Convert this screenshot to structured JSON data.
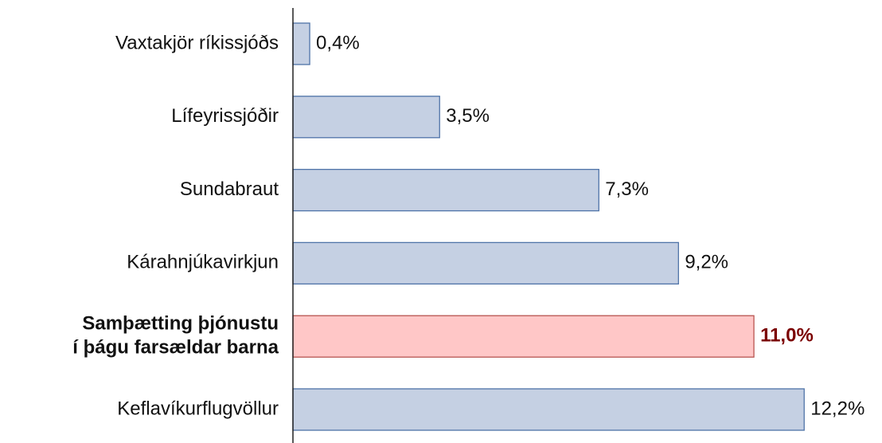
{
  "chart_data": {
    "type": "barh",
    "categories": [
      "Vaxtakjör ríkissjóðs",
      "Lífeyrissjóðir",
      "Sundabraut",
      "Kárahnjúkavirkjun",
      [
        "Samþætting þjónustu",
        "í þágu farsældar barna"
      ],
      "Keflavíkurflugvöllur"
    ],
    "values": [
      0.4,
      3.5,
      7.3,
      9.2,
      11.0,
      12.2
    ],
    "value_labels": [
      "0,4%",
      "3,5%",
      "7,3%",
      "9,2%",
      "11,0%",
      "12,2%"
    ],
    "colors": [
      "#c5d0e3",
      "#c5d0e3",
      "#c5d0e3",
      "#c5d0e3",
      "#ffc7c7",
      "#c5d0e3"
    ],
    "edge_colors": [
      "#4f73a8",
      "#4f73a8",
      "#4f73a8",
      "#4f73a8",
      "#b85450",
      "#4f73a8"
    ],
    "highlight": 4,
    "highlight_label_color": "#7b0000",
    "xlim": [
      0,
      14
    ]
  }
}
